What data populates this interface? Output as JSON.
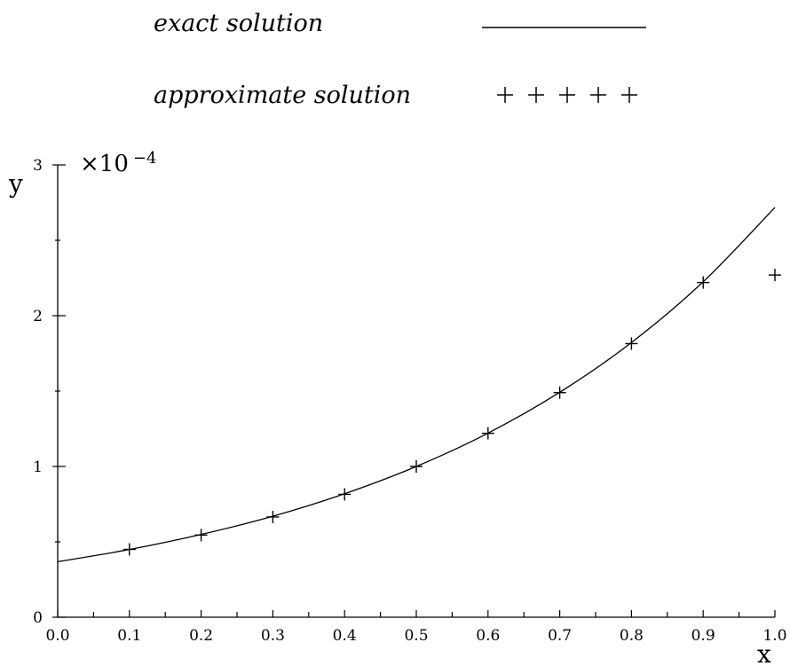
{
  "chart_data": {
    "type": "line",
    "xlabel": "x",
    "ylabel": "y",
    "y_scale_label": "×10",
    "y_scale_exponent": "−4",
    "xlim": [
      0.0,
      1.0
    ],
    "ylim": [
      0,
      3
    ],
    "x_ticks": [
      "0.0",
      "0.1",
      "0.2",
      "0.3",
      "0.4",
      "0.5",
      "0.6",
      "0.7",
      "0.8",
      "0.9",
      "1.0"
    ],
    "y_ticks": [
      "0",
      "1",
      "2",
      "3"
    ],
    "legend_position": "top",
    "grid": false,
    "series": [
      {
        "name": "exact solution",
        "style": "line",
        "x": [
          0.0,
          0.1,
          0.2,
          0.3,
          0.4,
          0.5,
          0.6,
          0.7,
          0.8,
          0.9,
          1.0
        ],
        "y": [
          0.368,
          0.449,
          0.549,
          0.67,
          0.819,
          1.0,
          1.221,
          1.492,
          1.822,
          2.225,
          2.718
        ]
      },
      {
        "name": "approximate solution",
        "style": "plus-markers",
        "x": [
          0.1,
          0.2,
          0.3,
          0.4,
          0.5,
          0.6,
          0.7,
          0.8,
          0.9,
          1.0
        ],
        "y": [
          0.45,
          0.545,
          0.665,
          0.815,
          1.0,
          1.22,
          1.49,
          1.815,
          2.22,
          2.27
        ]
      }
    ],
    "colors": {
      "line": "#000000",
      "marker": "#000000"
    }
  }
}
